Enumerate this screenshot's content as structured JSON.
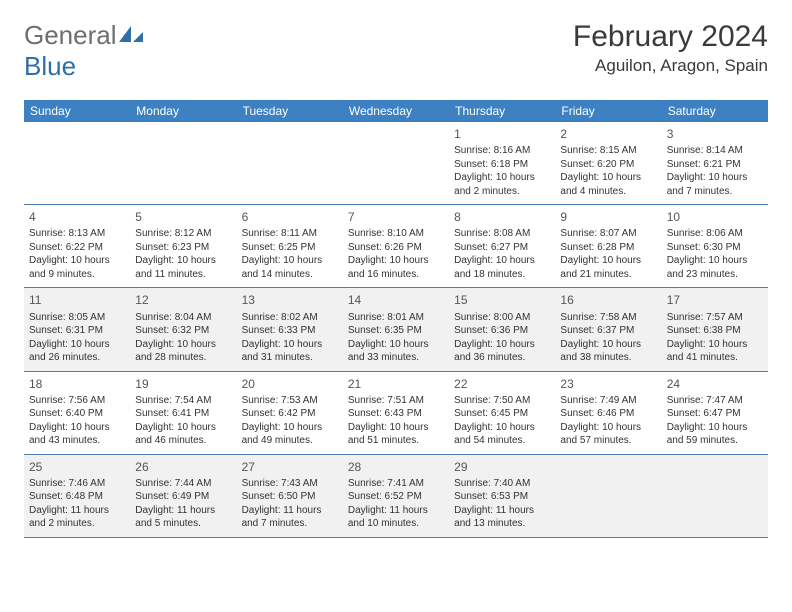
{
  "logo": {
    "line1": "General",
    "line2": "Blue"
  },
  "title": "February 2024",
  "location": "Aguilon, Aragon, Spain",
  "header_bg": "#3d81c2",
  "header_fg": "#ffffff",
  "row_border": "#4a7eb5",
  "faded_bg": "#f1f1f1",
  "text_color": "#333333",
  "weekdays": [
    "Sunday",
    "Monday",
    "Tuesday",
    "Wednesday",
    "Thursday",
    "Friday",
    "Saturday"
  ],
  "weeks": [
    [
      {
        "day": "",
        "sunrise": "",
        "sunset": "",
        "daylight": "",
        "faded": false
      },
      {
        "day": "",
        "sunrise": "",
        "sunset": "",
        "daylight": "",
        "faded": false
      },
      {
        "day": "",
        "sunrise": "",
        "sunset": "",
        "daylight": "",
        "faded": false
      },
      {
        "day": "",
        "sunrise": "",
        "sunset": "",
        "daylight": "",
        "faded": false
      },
      {
        "day": "1",
        "sunrise": "Sunrise: 8:16 AM",
        "sunset": "Sunset: 6:18 PM",
        "daylight": "Daylight: 10 hours and 2 minutes.",
        "faded": false
      },
      {
        "day": "2",
        "sunrise": "Sunrise: 8:15 AM",
        "sunset": "Sunset: 6:20 PM",
        "daylight": "Daylight: 10 hours and 4 minutes.",
        "faded": false
      },
      {
        "day": "3",
        "sunrise": "Sunrise: 8:14 AM",
        "sunset": "Sunset: 6:21 PM",
        "daylight": "Daylight: 10 hours and 7 minutes.",
        "faded": false
      }
    ],
    [
      {
        "day": "4",
        "sunrise": "Sunrise: 8:13 AM",
        "sunset": "Sunset: 6:22 PM",
        "daylight": "Daylight: 10 hours and 9 minutes.",
        "faded": false
      },
      {
        "day": "5",
        "sunrise": "Sunrise: 8:12 AM",
        "sunset": "Sunset: 6:23 PM",
        "daylight": "Daylight: 10 hours and 11 minutes.",
        "faded": false
      },
      {
        "day": "6",
        "sunrise": "Sunrise: 8:11 AM",
        "sunset": "Sunset: 6:25 PM",
        "daylight": "Daylight: 10 hours and 14 minutes.",
        "faded": false
      },
      {
        "day": "7",
        "sunrise": "Sunrise: 8:10 AM",
        "sunset": "Sunset: 6:26 PM",
        "daylight": "Daylight: 10 hours and 16 minutes.",
        "faded": false
      },
      {
        "day": "8",
        "sunrise": "Sunrise: 8:08 AM",
        "sunset": "Sunset: 6:27 PM",
        "daylight": "Daylight: 10 hours and 18 minutes.",
        "faded": false
      },
      {
        "day": "9",
        "sunrise": "Sunrise: 8:07 AM",
        "sunset": "Sunset: 6:28 PM",
        "daylight": "Daylight: 10 hours and 21 minutes.",
        "faded": false
      },
      {
        "day": "10",
        "sunrise": "Sunrise: 8:06 AM",
        "sunset": "Sunset: 6:30 PM",
        "daylight": "Daylight: 10 hours and 23 minutes.",
        "faded": false
      }
    ],
    [
      {
        "day": "11",
        "sunrise": "Sunrise: 8:05 AM",
        "sunset": "Sunset: 6:31 PM",
        "daylight": "Daylight: 10 hours and 26 minutes.",
        "faded": true
      },
      {
        "day": "12",
        "sunrise": "Sunrise: 8:04 AM",
        "sunset": "Sunset: 6:32 PM",
        "daylight": "Daylight: 10 hours and 28 minutes.",
        "faded": true
      },
      {
        "day": "13",
        "sunrise": "Sunrise: 8:02 AM",
        "sunset": "Sunset: 6:33 PM",
        "daylight": "Daylight: 10 hours and 31 minutes.",
        "faded": true
      },
      {
        "day": "14",
        "sunrise": "Sunrise: 8:01 AM",
        "sunset": "Sunset: 6:35 PM",
        "daylight": "Daylight: 10 hours and 33 minutes.",
        "faded": true
      },
      {
        "day": "15",
        "sunrise": "Sunrise: 8:00 AM",
        "sunset": "Sunset: 6:36 PM",
        "daylight": "Daylight: 10 hours and 36 minutes.",
        "faded": true
      },
      {
        "day": "16",
        "sunrise": "Sunrise: 7:58 AM",
        "sunset": "Sunset: 6:37 PM",
        "daylight": "Daylight: 10 hours and 38 minutes.",
        "faded": true
      },
      {
        "day": "17",
        "sunrise": "Sunrise: 7:57 AM",
        "sunset": "Sunset: 6:38 PM",
        "daylight": "Daylight: 10 hours and 41 minutes.",
        "faded": true
      }
    ],
    [
      {
        "day": "18",
        "sunrise": "Sunrise: 7:56 AM",
        "sunset": "Sunset: 6:40 PM",
        "daylight": "Daylight: 10 hours and 43 minutes.",
        "faded": false
      },
      {
        "day": "19",
        "sunrise": "Sunrise: 7:54 AM",
        "sunset": "Sunset: 6:41 PM",
        "daylight": "Daylight: 10 hours and 46 minutes.",
        "faded": false
      },
      {
        "day": "20",
        "sunrise": "Sunrise: 7:53 AM",
        "sunset": "Sunset: 6:42 PM",
        "daylight": "Daylight: 10 hours and 49 minutes.",
        "faded": false
      },
      {
        "day": "21",
        "sunrise": "Sunrise: 7:51 AM",
        "sunset": "Sunset: 6:43 PM",
        "daylight": "Daylight: 10 hours and 51 minutes.",
        "faded": false
      },
      {
        "day": "22",
        "sunrise": "Sunrise: 7:50 AM",
        "sunset": "Sunset: 6:45 PM",
        "daylight": "Daylight: 10 hours and 54 minutes.",
        "faded": false
      },
      {
        "day": "23",
        "sunrise": "Sunrise: 7:49 AM",
        "sunset": "Sunset: 6:46 PM",
        "daylight": "Daylight: 10 hours and 57 minutes.",
        "faded": false
      },
      {
        "day": "24",
        "sunrise": "Sunrise: 7:47 AM",
        "sunset": "Sunset: 6:47 PM",
        "daylight": "Daylight: 10 hours and 59 minutes.",
        "faded": false
      }
    ],
    [
      {
        "day": "25",
        "sunrise": "Sunrise: 7:46 AM",
        "sunset": "Sunset: 6:48 PM",
        "daylight": "Daylight: 11 hours and 2 minutes.",
        "faded": true
      },
      {
        "day": "26",
        "sunrise": "Sunrise: 7:44 AM",
        "sunset": "Sunset: 6:49 PM",
        "daylight": "Daylight: 11 hours and 5 minutes.",
        "faded": true
      },
      {
        "day": "27",
        "sunrise": "Sunrise: 7:43 AM",
        "sunset": "Sunset: 6:50 PM",
        "daylight": "Daylight: 11 hours and 7 minutes.",
        "faded": true
      },
      {
        "day": "28",
        "sunrise": "Sunrise: 7:41 AM",
        "sunset": "Sunset: 6:52 PM",
        "daylight": "Daylight: 11 hours and 10 minutes.",
        "faded": true
      },
      {
        "day": "29",
        "sunrise": "Sunrise: 7:40 AM",
        "sunset": "Sunset: 6:53 PM",
        "daylight": "Daylight: 11 hours and 13 minutes.",
        "faded": true
      },
      {
        "day": "",
        "sunrise": "",
        "sunset": "",
        "daylight": "",
        "faded": true
      },
      {
        "day": "",
        "sunrise": "",
        "sunset": "",
        "daylight": "",
        "faded": true
      }
    ]
  ]
}
